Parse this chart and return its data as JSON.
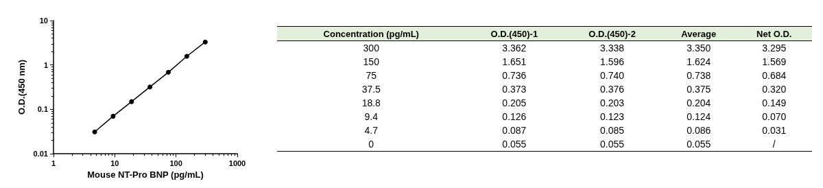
{
  "chart_data": [
    {
      "type": "line",
      "xlabel": "Mouse NT-Pro BNP (pg/mL)",
      "ylabel": "O.D.(450 nm)",
      "x": [
        4.7,
        9.4,
        18.8,
        37.5,
        75,
        150,
        300
      ],
      "series": [
        {
          "color": "#000000",
          "values": [
            0.031,
            0.07,
            0.149,
            0.32,
            0.684,
            1.569,
            3.295
          ]
        }
      ],
      "log": "xy",
      "xlim": [
        1,
        1000
      ],
      "xticks": [
        1,
        10,
        100,
        1000
      ],
      "ylim": [
        0.01,
        10
      ],
      "yticks": [
        0.01,
        0.1,
        1,
        10
      ],
      "grid": false,
      "marker": "circle",
      "line_style": "solid"
    },
    {
      "type": "other",
      "categories": [
        "Concentration (pg/mL)",
        "O.D.(450)-1",
        "O.D.(450)-2",
        "Average",
        "Net O.D."
      ],
      "annotations": [
        "300",
        "3.362",
        "3.338",
        "3.350",
        "3.295",
        "150",
        "1.651",
        "1.596",
        "1.624",
        "1.569",
        "75",
        "0.736",
        "0.740",
        "0.738",
        "0.684",
        "37.5",
        "0.373",
        "0.376",
        "0.375",
        "0.320",
        "18.8",
        "0.205",
        "0.203",
        "0.204",
        "0.149",
        "9.4",
        "0.126",
        "0.123",
        "0.124",
        "0.070",
        "4.7",
        "0.087",
        "0.085",
        "0.086",
        "0.031",
        "0",
        "0.055",
        "0.055",
        "0.055",
        "/"
      ],
      "color": "#e2efda"
    }
  ]
}
